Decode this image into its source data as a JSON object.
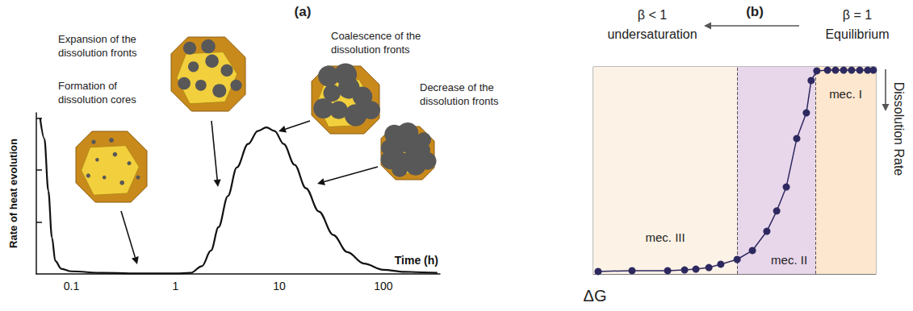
{
  "chart_data": [
    {
      "type": "line",
      "title": "(a)",
      "x_label": "Time (h)",
      "y_label": "Rate of heat evolution",
      "log": "x",
      "x": [
        0.05,
        0.055,
        0.06,
        0.065,
        0.07,
        0.08,
        0.1,
        0.2,
        0.5,
        1,
        1.4,
        1.8,
        2.2,
        2.6,
        3.2,
        3.9,
        5,
        6.2,
        7.5,
        9,
        11,
        14,
        18,
        24,
        33,
        45,
        65,
        100,
        160,
        330
      ],
      "values": [
        3.0,
        2.6,
        1.6,
        0.7,
        0.25,
        0.1,
        0.05,
        0.02,
        0.01,
        0.01,
        0.02,
        0.15,
        0.45,
        0.9,
        1.5,
        2.05,
        2.5,
        2.75,
        2.82,
        2.75,
        2.5,
        2.1,
        1.65,
        1.2,
        0.75,
        0.42,
        0.2,
        0.08,
        0.04,
        0.02
      ],
      "color": "#111111",
      "line_style": "solid",
      "marker": "none",
      "xlim": [
        0.046,
        350
      ],
      "ylim": [
        0,
        3.1
      ],
      "xticks": [
        0.1,
        1,
        10,
        100
      ],
      "yticks": [
        1,
        2,
        3
      ],
      "tick_labels": "x",
      "grid": false,
      "annotations": [
        "Formation of dissolution cores",
        "Expansion of the dissolution fronts",
        "Coalescence of the dissolution fronts",
        "Decrease of the dissolution fronts"
      ]
    },
    {
      "type": "line",
      "title": "(b)",
      "x_label": "ΔG",
      "y_label": "Dissolution Rate",
      "x": [
        0.17,
        1.37,
        2.63,
        3.23,
        3.63,
        4.09,
        4.51,
        5.09,
        5.63,
        6.14,
        6.49,
        6.83,
        7.2,
        7.54,
        7.71,
        7.91,
        8.29,
        8.57,
        8.86,
        9.14,
        9.43,
        9.71,
        9.91
      ],
      "values": [
        0.12,
        0.16,
        0.16,
        0.19,
        0.23,
        0.31,
        0.47,
        0.7,
        1.13,
        2.06,
        3.04,
        4.2,
        6.54,
        7.78,
        9.34,
        9.81,
        9.84,
        9.84,
        9.84,
        9.84,
        9.84,
        9.84,
        9.84
      ],
      "color": "#2d2960",
      "line_style": "solid",
      "marker": "circle",
      "xlim": [
        0,
        10
      ],
      "ylim": [
        0,
        10
      ],
      "tick_labels": false,
      "grid": false,
      "regions": [
        {
          "label": "mec. III",
          "from": 0,
          "to": 5.09,
          "color": "#fdf2e6"
        },
        {
          "label": "mec. II",
          "from": 5.09,
          "to": 7.86,
          "color": "#e8d6ea"
        },
        {
          "label": "mec. I",
          "from": 7.86,
          "to": 10,
          "color": "#fde7cf"
        }
      ],
      "annotations": [
        "β < 1",
        "undersaturation",
        "β = 1",
        "Equilibrium"
      ]
    }
  ]
}
